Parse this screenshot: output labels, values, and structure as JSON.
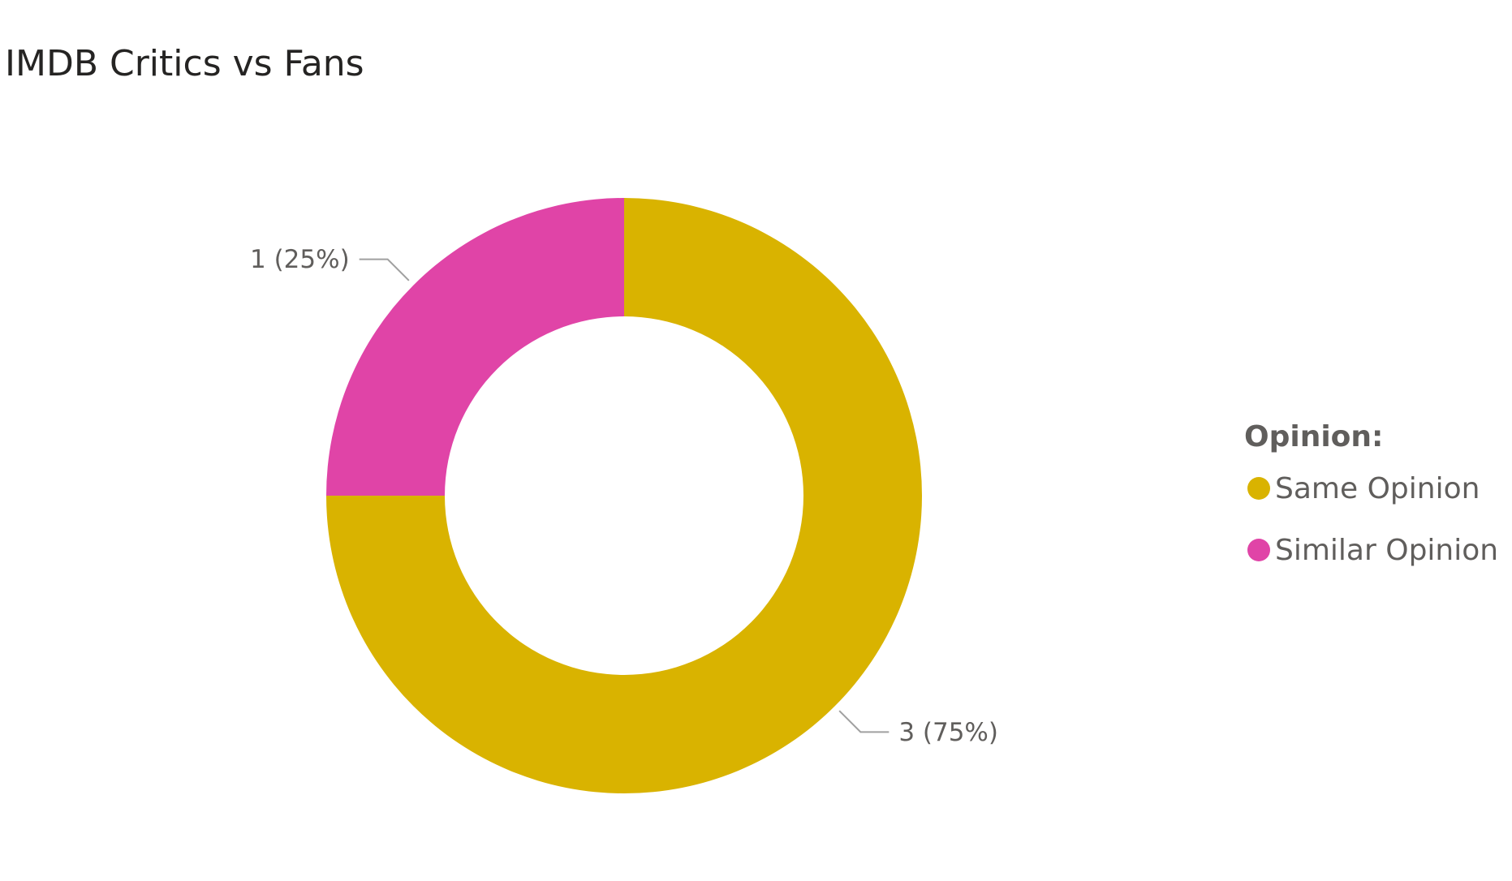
{
  "chart_data": {
    "type": "donut",
    "title": "IMDB Critics vs Fans",
    "categories": [
      "Same Opinion",
      "Similar Opinion"
    ],
    "series": [
      {
        "name": "Opinion:",
        "colors": [
          "#D9B300",
          "#E044A7"
        ],
        "values": [
          3,
          1
        ],
        "value_labels": [
          "3 (75%)",
          "1 (25%)"
        ]
      }
    ],
    "legend_title": "Opinion:",
    "legend": "right"
  }
}
